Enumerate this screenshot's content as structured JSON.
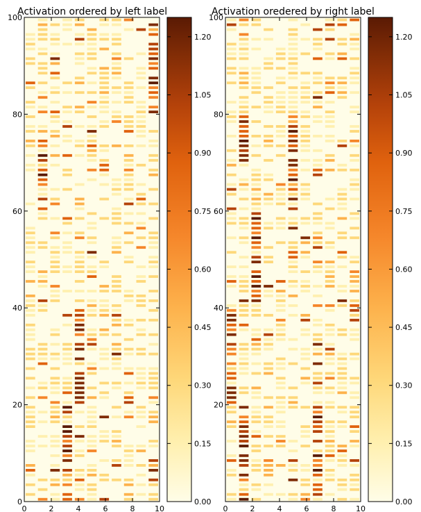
{
  "chart_data": [
    {
      "type": "heatmap",
      "title": "Activation ordered by left label",
      "xlim": [
        0,
        10
      ],
      "ylim": [
        0,
        100
      ],
      "x_ticks": [
        "0",
        "2",
        "4",
        "6",
        "8",
        "10"
      ],
      "y_ticks": [
        "0",
        "20",
        "40",
        "60",
        "80",
        "100"
      ],
      "columns": 11,
      "rows": 100,
      "band_column_ranges": [
        {
          "rows": [
            0,
            20
          ],
          "columns": [
            8,
            9
          ]
        },
        {
          "rows": [
            20,
            40
          ],
          "columns": [
            8,
            9
          ]
        },
        {
          "rows": [
            40,
            60
          ],
          "columns": [
            8,
            9
          ]
        },
        {
          "rows": [
            60,
            80
          ],
          "columns": [
            8,
            9
          ]
        },
        {
          "rows": [
            80,
            100
          ],
          "columns": [
            8,
            9
          ]
        }
      ],
      "hot_blocks": [
        {
          "rows": [
            0,
            20
          ],
          "column": 3
        },
        {
          "rows": [
            20,
            40
          ],
          "column": 4
        },
        {
          "rows": [
            60,
            75
          ],
          "column": 1
        },
        {
          "rows": [
            80,
            100
          ],
          "column": 10
        }
      ],
      "colorbar": {
        "min": 0.0,
        "max": 1.25,
        "ticks": [
          "0.00",
          "0.15",
          "0.30",
          "0.45",
          "0.60",
          "0.75",
          "0.90",
          "1.05",
          "1.20"
        ]
      },
      "colormap": [
        "#fffde8",
        "#fff0b0",
        "#fed87a",
        "#fdb24c",
        "#f5862a",
        "#e0620e",
        "#b4420a",
        "#7e2b06",
        "#5a1a04"
      ]
    },
    {
      "type": "heatmap",
      "title": "Activation oredered by right label",
      "xlim": [
        0,
        10
      ],
      "ylim": [
        0,
        100
      ],
      "x_ticks": [
        "0",
        "2",
        "4",
        "6",
        "8",
        "10"
      ],
      "y_ticks": [
        "20",
        "40",
        "60",
        "80",
        "100"
      ],
      "columns": 11,
      "rows": 100,
      "hot_blocks": [
        {
          "rows": [
            0,
            20
          ],
          "column": 1
        },
        {
          "rows": [
            0,
            20
          ],
          "column": 7
        },
        {
          "rows": [
            20,
            40
          ],
          "column": 0
        },
        {
          "rows": [
            40,
            60
          ],
          "column": 2
        },
        {
          "rows": [
            60,
            80
          ],
          "column": 5
        },
        {
          "rows": [
            70,
            80
          ],
          "column": 1
        }
      ],
      "colorbar": {
        "min": 0.0,
        "max": 1.25,
        "ticks": [
          "0.00",
          "0.15",
          "0.30",
          "0.45",
          "0.60",
          "0.75",
          "0.90",
          "1.05",
          "1.20"
        ]
      },
      "colormap": [
        "#fffde8",
        "#fff0b0",
        "#fed87a",
        "#fdb24c",
        "#f5862a",
        "#e0620e",
        "#b4420a",
        "#7e2b06",
        "#5a1a04"
      ]
    }
  ]
}
